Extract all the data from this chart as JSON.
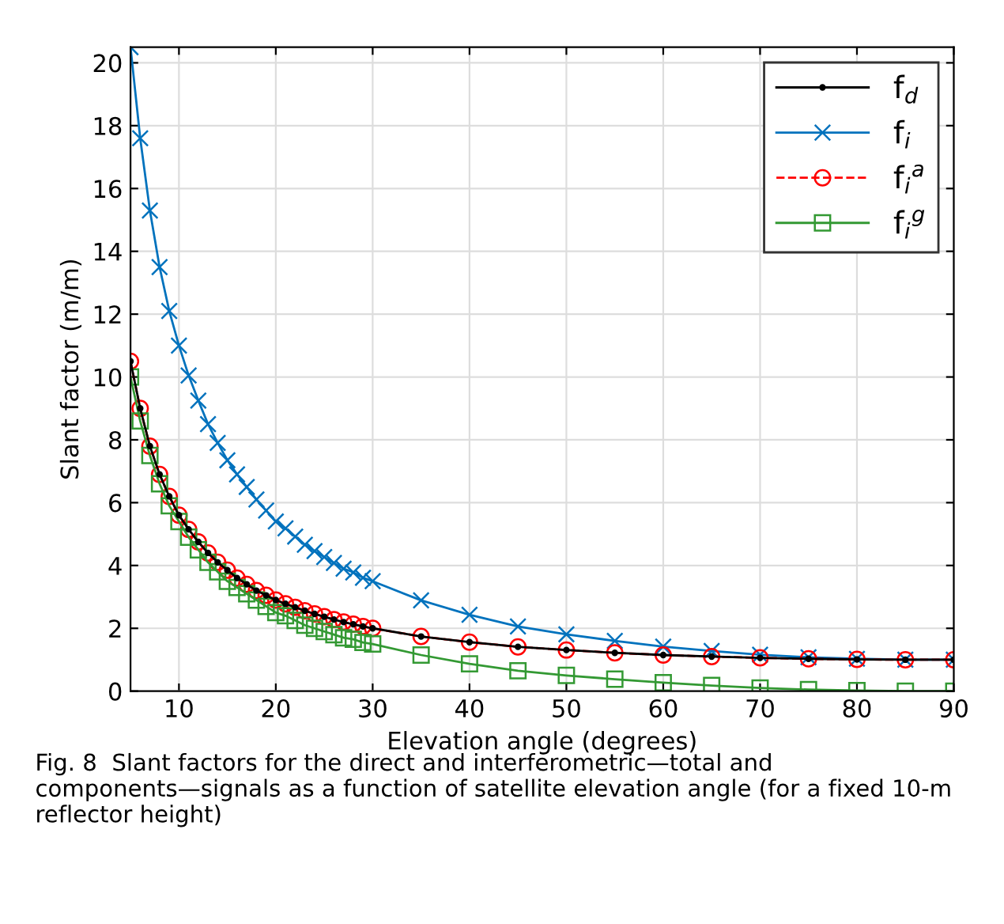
{
  "chart_data": {
    "type": "line",
    "xlabel": "Elevation angle (degrees)",
    "ylabel": "Slant factor (m/m)",
    "x": [
      5,
      6,
      7,
      8,
      9,
      10,
      11,
      12,
      13,
      14,
      15,
      16,
      17,
      18,
      19,
      20,
      21,
      22,
      23,
      24,
      25,
      26,
      27,
      28,
      29,
      30,
      35,
      40,
      45,
      50,
      55,
      60,
      65,
      70,
      75,
      80,
      85,
      90
    ],
    "series": [
      {
        "name": "f$_{d}$",
        "color": "#000000",
        "marker": "circle",
        "line_style": "solid",
        "values": [
          10.5,
          9.0,
          7.8,
          6.9,
          6.2,
          5.6,
          5.15,
          4.75,
          4.4,
          4.1,
          3.85,
          3.6,
          3.4,
          3.2,
          3.05,
          2.9,
          2.78,
          2.67,
          2.56,
          2.46,
          2.37,
          2.28,
          2.2,
          2.13,
          2.06,
          2.0,
          1.74,
          1.56,
          1.41,
          1.31,
          1.22,
          1.15,
          1.1,
          1.06,
          1.03,
          1.01,
          1.0,
          1.0
        ]
      },
      {
        "name": "f$_{i}$",
        "color": "#0072bd",
        "marker": "cross",
        "line_style": "solid",
        "values": [
          20.5,
          17.6,
          15.3,
          13.5,
          12.1,
          11.0,
          10.05,
          9.25,
          8.5,
          7.9,
          7.35,
          6.9,
          6.5,
          6.1,
          5.75,
          5.4,
          5.18,
          4.92,
          4.66,
          4.46,
          4.27,
          4.08,
          3.9,
          3.78,
          3.61,
          3.5,
          2.89,
          2.43,
          2.06,
          1.81,
          1.6,
          1.42,
          1.28,
          1.16,
          1.08,
          1.03,
          1.0,
          1.0
        ]
      },
      {
        "name": "f$_{i}$$^{a}$",
        "color": "#ff0000",
        "marker": "circle",
        "line_style": "dashed",
        "values": [
          10.5,
          9.0,
          7.8,
          6.9,
          6.2,
          5.6,
          5.15,
          4.75,
          4.4,
          4.1,
          3.85,
          3.6,
          3.4,
          3.2,
          3.05,
          2.9,
          2.78,
          2.67,
          2.56,
          2.46,
          2.37,
          2.28,
          2.2,
          2.13,
          2.06,
          2.0,
          1.74,
          1.56,
          1.41,
          1.31,
          1.22,
          1.15,
          1.1,
          1.06,
          1.03,
          1.01,
          1.0,
          1.0
        ]
      },
      {
        "name": "f$_{i}$$^{g}$",
        "color": "#339933",
        "marker": "square",
        "line_style": "solid",
        "values": [
          10.0,
          8.6,
          7.5,
          6.6,
          5.9,
          5.4,
          4.9,
          4.5,
          4.1,
          3.8,
          3.5,
          3.3,
          3.1,
          2.9,
          2.7,
          2.5,
          2.4,
          2.25,
          2.1,
          2.0,
          1.9,
          1.8,
          1.7,
          1.65,
          1.55,
          1.5,
          1.15,
          0.87,
          0.65,
          0.5,
          0.38,
          0.27,
          0.18,
          0.1,
          0.05,
          0.02,
          0,
          0
        ]
      }
    ],
    "xlim": [
      5,
      90
    ],
    "ylim": [
      0,
      20.5
    ],
    "xticks": [
      10,
      20,
      30,
      40,
      50,
      60,
      70,
      80,
      90
    ],
    "yticks": [
      0,
      2,
      4,
      6,
      8,
      10,
      12,
      14,
      16,
      18,
      20
    ],
    "grid": true,
    "legend": "top right",
    "annotations": [
      "Fig. 8  Slant factors for the direct and interferometric—total and components—signals as a function of satellite elevation angle (for a fixed 10-m reflector height)"
    ]
  }
}
